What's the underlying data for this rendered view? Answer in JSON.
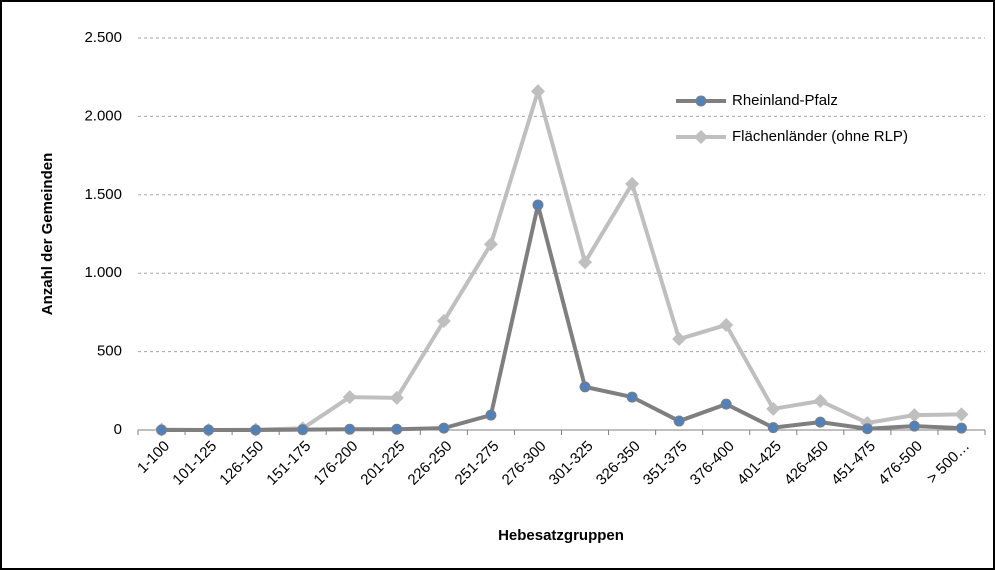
{
  "chart_data": {
    "type": "line",
    "x_label": "Hebesatzgruppen",
    "y_label": "Anzahl der Gemeinden",
    "categories": [
      "1-100",
      "101-125",
      "126-150",
      "151-175",
      "176-200",
      "201-225",
      "226-250",
      "251-275",
      "276-300",
      "301-325",
      "326-350",
      "351-375",
      "376-400",
      "401-425",
      "426-450",
      "451-475",
      "476-500",
      "> 500…"
    ],
    "series": [
      {
        "name": "Rheinland-Pfalz",
        "color": "#7f7f7f",
        "marker": "circle",
        "marker_color": "#4f81bd",
        "values": [
          0,
          0,
          0,
          2,
          5,
          5,
          12,
          95,
          1435,
          275,
          210,
          57,
          165,
          15,
          50,
          8,
          25,
          12
        ]
      },
      {
        "name": "Flächenländer (ohne RLP)",
        "color": "#bfbfbf",
        "marker": "diamond",
        "marker_color": "#bfbfbf",
        "values": [
          2,
          0,
          2,
          10,
          210,
          205,
          695,
          1185,
          2160,
          1070,
          1570,
          580,
          670,
          135,
          185,
          45,
          95,
          100
        ]
      }
    ],
    "ylim": [
      0,
      2500
    ],
    "yticks": [
      0,
      500,
      {
        "value": 1000,
        "label": "1.000"
      },
      {
        "value": 1500,
        "label": "1.500"
      },
      {
        "value": 2000,
        "label": "2.000"
      },
      {
        "value": 2500,
        "label": "2.500"
      }
    ],
    "grid": true,
    "legend": "upper right"
  }
}
